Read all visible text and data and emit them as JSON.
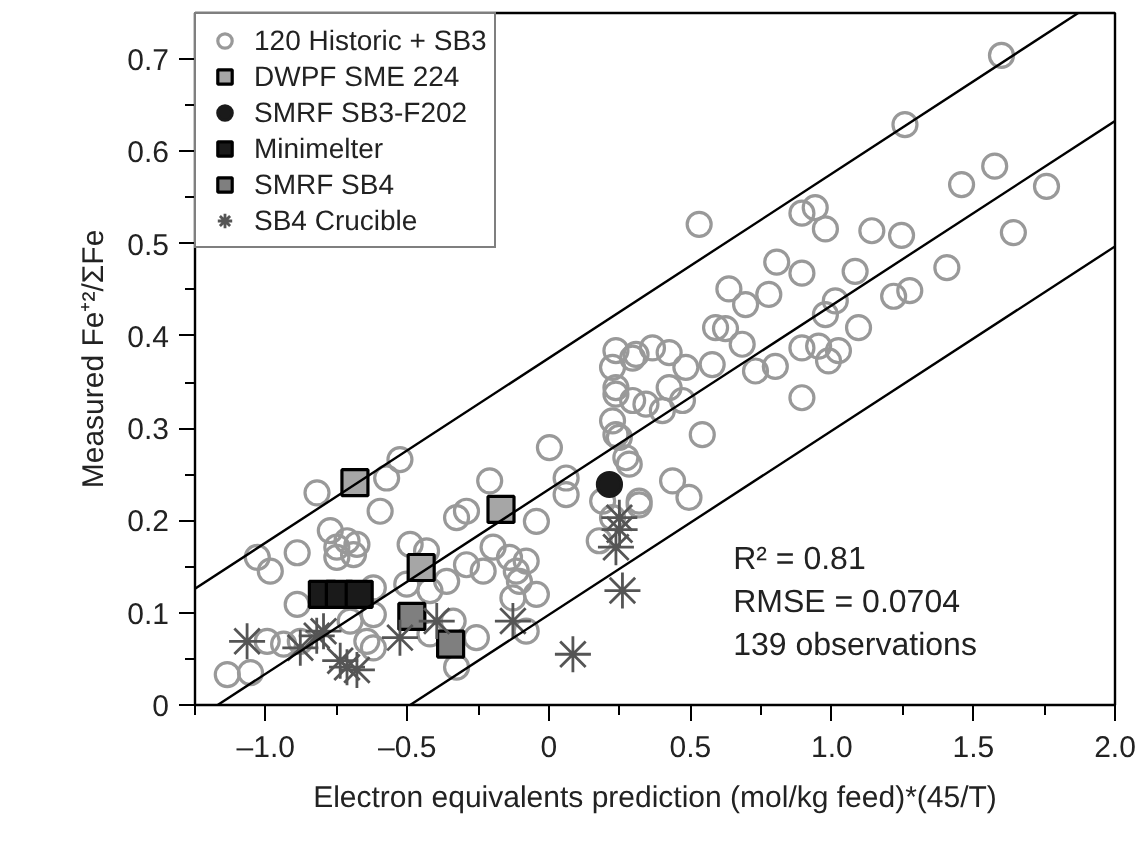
{
  "chart_data": {
    "type": "scatter",
    "xlabel": "Electron equivalents prediction (mol/kg feed)*(45/T)",
    "ylabel": "Measured Fe⁺²/ΣFe",
    "xlim": [
      -1.25,
      2.0
    ],
    "ylim": [
      0,
      0.75
    ],
    "xticks": [
      {
        "value": -1.25,
        "label": null
      },
      {
        "value": -1.0,
        "label": "–1.0"
      },
      {
        "value": -0.75,
        "label": null
      },
      {
        "value": -0.5,
        "label": "–0.5"
      },
      {
        "value": -0.25,
        "label": null
      },
      0,
      {
        "value": 0.25,
        "label": null
      },
      {
        "value": 0.5,
        "label": "0.5"
      },
      {
        "value": 0.75,
        "label": null
      },
      {
        "value": 1.0,
        "label": "1.0"
      },
      {
        "value": 1.25,
        "label": null
      },
      {
        "value": 1.5,
        "label": "1.5"
      },
      {
        "value": 1.75,
        "label": null
      },
      {
        "value": 2.0,
        "label": "2.0"
      }
    ],
    "yticks": [
      0,
      {
        "value": 0.05,
        "label": null
      },
      0.1,
      {
        "value": 0.15,
        "label": null
      },
      0.2,
      {
        "value": 0.25,
        "label": null
      },
      0.3,
      {
        "value": 0.35,
        "label": null
      },
      0.4,
      {
        "value": 0.45,
        "label": null
      },
      0.5,
      {
        "value": 0.55,
        "label": null
      },
      0.6,
      {
        "value": 0.65,
        "label": null
      },
      0.7
    ],
    "grid": false,
    "legend": "top left",
    "annotations": [
      "R² = 0.81",
      "RMSE = 0.0704",
      "139 observations"
    ],
    "series": [
      {
        "name": "120 Historic + SB3",
        "color": "#999999",
        "marker": "circle",
        "x": [
          -1.136,
          -1.054,
          -1.03,
          -0.984,
          -0.889,
          -0.819,
          -0.772,
          -0.749,
          -0.713,
          -0.678,
          -0.749,
          -0.69,
          -0.596,
          -0.573,
          -0.526,
          -0.889,
          -0.995,
          -0.937,
          -0.878,
          -0.62,
          -0.62,
          -0.702,
          -0.643,
          -0.62,
          -0.49,
          -0.432,
          -0.502,
          -0.42,
          -0.361,
          -0.326,
          -0.291,
          -0.338,
          -0.42,
          -0.326,
          -0.256,
          -0.291,
          -0.232,
          -0.197,
          -0.209,
          -0.139,
          -0.115,
          -0.08,
          -0.104,
          -0.044,
          -0.127,
          -0.08,
          -0.044,
          0.002,
          0.061,
          0.061,
          0.178,
          0.225,
          0.319,
          0.225,
          0.296,
          0.237,
          0.296,
          0.225,
          0.249,
          0.272,
          0.19,
          0.343,
          1.599,
          1.258,
          0.531,
          0.894,
          0.941,
          0.977,
          1.141,
          1.246,
          1.458,
          1.575,
          1.758,
          1.641,
          1.406,
          1.218,
          1.275,
          1.082,
          0.894,
          0.805,
          0.777,
          0.636,
          0.695,
          0.589,
          0.624,
          0.683,
          1.012,
          0.977,
          1.094,
          0.237,
          0.308,
          0.366,
          0.425,
          0.484,
          0.577,
          0.8,
          0.894,
          0.953,
          1.023,
          0.73,
          0.425,
          0.472,
          0.401,
          0.542,
          0.894,
          0.988,
          0.237,
          0.237,
          0.284,
          0.437,
          0.495,
          0.319
        ],
        "values": [
          0.033,
          0.035,
          0.16,
          0.145,
          0.165,
          0.23,
          0.189,
          0.171,
          0.178,
          0.174,
          0.16,
          0.163,
          0.21,
          0.246,
          0.266,
          0.109,
          0.069,
          0.066,
          0.069,
          0.127,
          0.098,
          0.091,
          0.069,
          0.062,
          0.174,
          0.167,
          0.131,
          0.124,
          0.134,
          0.203,
          0.21,
          0.091,
          0.077,
          0.041,
          0.073,
          0.152,
          0.145,
          0.171,
          0.243,
          0.16,
          0.145,
          0.156,
          0.134,
          0.12,
          0.116,
          0.08,
          0.199,
          0.279,
          0.246,
          0.228,
          0.178,
          0.203,
          0.221,
          0.366,
          0.376,
          0.337,
          0.33,
          0.308,
          0.29,
          0.268,
          0.221,
          0.326,
          0.704,
          0.629,
          0.521,
          0.533,
          0.539,
          0.516,
          0.514,
          0.509,
          0.564,
          0.584,
          0.562,
          0.512,
          0.474,
          0.443,
          0.449,
          0.47,
          0.468,
          0.48,
          0.445,
          0.451,
          0.434,
          0.409,
          0.408,
          0.391,
          0.438,
          0.423,
          0.409,
          0.384,
          0.38,
          0.387,
          0.382,
          0.366,
          0.369,
          0.367,
          0.387,
          0.389,
          0.384,
          0.362,
          0.344,
          0.33,
          0.319,
          0.293,
          0.333,
          0.373,
          0.344,
          0.293,
          0.261,
          0.243,
          0.225,
          0.217
        ]
      },
      {
        "name": "DWPF SME 224",
        "color": "#a6a6a6",
        "marker": "square",
        "x": [
          -0.685,
          -0.169,
          -0.451
        ],
        "values": [
          0.241,
          0.212,
          0.149
        ]
      },
      {
        "name": "SMRF SB3-F202",
        "color": "#1a1a1a",
        "marker": "circle",
        "x": [
          0.214
        ],
        "values": [
          0.239
        ]
      },
      {
        "name": "Minimelter",
        "color": "#1a1a1a",
        "marker": "square",
        "x": [
          -0.8,
          -0.74,
          -0.67
        ],
        "values": [
          0.12,
          0.12,
          0.12
        ]
      },
      {
        "name": "SMRF SB4",
        "color": "#7f7f7f",
        "marker": "square",
        "x": [
          -0.484,
          -0.347
        ],
        "values": [
          0.096,
          0.066
        ]
      },
      {
        "name": "SB4 Crucible",
        "color": "#555555",
        "marker": "cross",
        "x": [
          -1.066,
          -0.878,
          -0.796,
          -0.82,
          -0.713,
          -0.678,
          -0.737,
          -0.526,
          -0.396,
          -0.127,
          0.085,
          0.249,
          0.237,
          0.26,
          0.25
        ],
        "values": [
          0.069,
          0.062,
          0.08,
          0.075,
          0.041,
          0.038,
          0.048,
          0.073,
          0.091,
          0.091,
          0.055,
          0.203,
          0.171,
          0.124,
          0.19
        ]
      },
      {
        "type": "line",
        "color": "#000000",
        "line_style": "solid",
        "x": [
          -1.17,
          2.0
        ],
        "values": [
          0,
          0.633
        ]
      },
      {
        "type": "line",
        "color": "#000000",
        "line_style": "solid",
        "x": [
          -1.25,
          1.87
        ],
        "values": [
          0.126,
          0.75
        ]
      },
      {
        "type": "line",
        "color": "#000000",
        "line_style": "solid",
        "x": [
          -0.49,
          2.0
        ],
        "values": [
          0,
          0.497
        ]
      }
    ]
  }
}
